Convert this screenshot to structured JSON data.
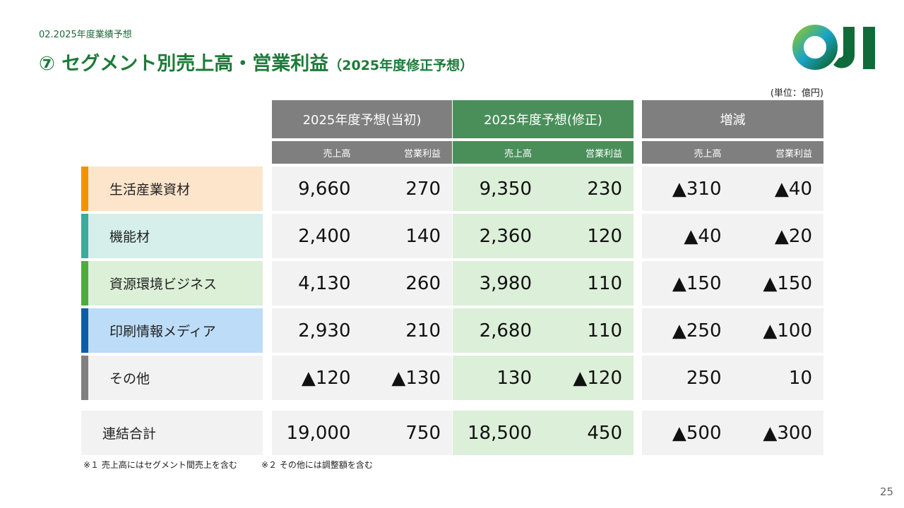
{
  "header": {
    "breadcrumb": "02.2025年度業績予想",
    "title": "⑦ セグメント別売上高・営業利益",
    "subtitle": "（2025年度修正予想）"
  },
  "unit": "(単位：億円)",
  "table": {
    "groups": [
      {
        "title": "2025年度予想(当初)",
        "subheaders": [
          "売上高",
          "営業利益"
        ]
      },
      {
        "title": "2025年度予想(修正)",
        "subheaders": [
          "売上高",
          "営業利益"
        ]
      },
      {
        "title": "増減",
        "subheaders": [
          "売上高",
          "営業利益"
        ]
      }
    ],
    "rows": [
      {
        "label": "生活産業資材",
        "cells": [
          "9,660",
          "270",
          "9,350",
          "230",
          "▲310",
          "▲40"
        ]
      },
      {
        "label": "機能材",
        "cells": [
          "2,400",
          "140",
          "2,360",
          "120",
          "▲40",
          "▲20"
        ]
      },
      {
        "label": "資源環境ビジネス",
        "cells": [
          "4,130",
          "260",
          "3,980",
          "110",
          "▲150",
          "▲150"
        ]
      },
      {
        "label": "印刷情報メディア",
        "cells": [
          "2,930",
          "210",
          "2,680",
          "110",
          "▲250",
          "▲100"
        ]
      },
      {
        "label": "その他",
        "cells": [
          "▲120",
          "▲130",
          "130",
          "▲120",
          "250",
          "10"
        ]
      }
    ],
    "total": {
      "label": "連結合計",
      "cells": [
        "19,000",
        "750",
        "18,500",
        "450",
        "▲500",
        "▲300"
      ]
    }
  },
  "footnotes": [
    "※１ 売上高にはセグメント間売上を含む",
    "※２ その他には調整額を含む"
  ],
  "page_number": "25"
}
